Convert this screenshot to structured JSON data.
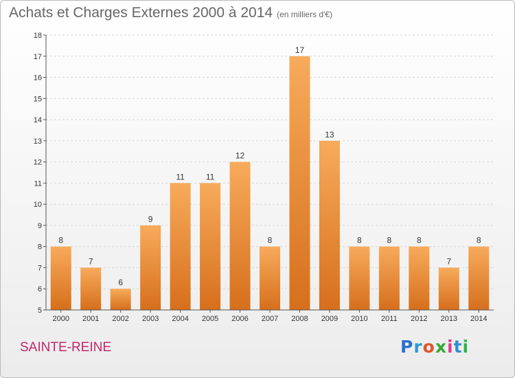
{
  "header": {
    "title": "Achats et Charges Externes 2000 à 2014",
    "unit": "(en milliers d'€)"
  },
  "footer": {
    "place": "SAINTE-REINE",
    "logo_text": "Proxiti",
    "logo_colors": [
      "#2e6fd0",
      "#2e9ad6",
      "#e0542a",
      "#39a935",
      "#e03a8c",
      "#2f8fcf",
      "#2db34a"
    ]
  },
  "colors": {
    "bar_top": "#f7ab5b",
    "bar_bottom": "#d66f1c",
    "axis": "#555555",
    "grid": "#d6d6d6",
    "label": "#333333"
  },
  "chart_data": {
    "type": "bar",
    "title": "Achats et Charges Externes 2000 à 2014",
    "subtitle": "(en milliers d'€)",
    "xlabel": "",
    "ylabel": "",
    "categories": [
      "2000",
      "2001",
      "2002",
      "2003",
      "2004",
      "2005",
      "2006",
      "2007",
      "2008",
      "2009",
      "2010",
      "2011",
      "2012",
      "2013",
      "2014"
    ],
    "values": [
      8,
      7,
      6,
      9,
      11,
      11,
      12,
      8,
      17,
      13,
      8,
      8,
      8,
      7,
      8
    ],
    "ylim": [
      5,
      18
    ],
    "yticks": [
      5,
      6,
      7,
      8,
      9,
      10,
      11,
      12,
      13,
      14,
      15,
      16,
      17,
      18
    ],
    "grid": true,
    "data_labels": true
  }
}
